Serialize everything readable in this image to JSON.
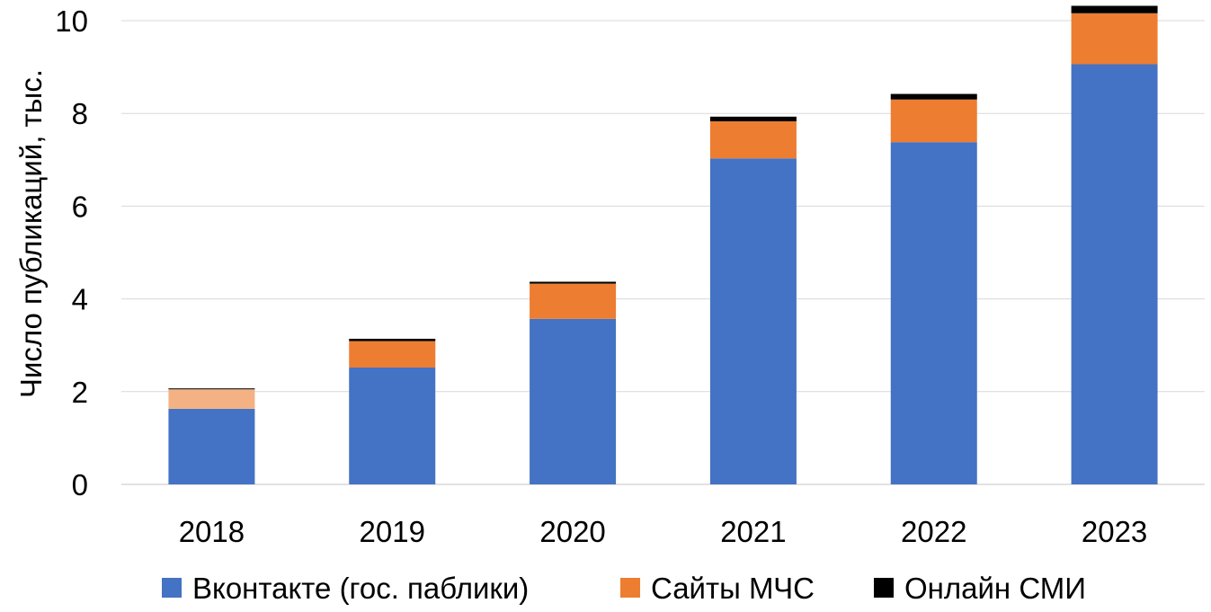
{
  "chart_data": {
    "type": "bar",
    "stacked": true,
    "title": "",
    "xlabel": "",
    "ylabel": "Число публикаций, тыс.",
    "categories": [
      "2018",
      "2019",
      "2020",
      "2021",
      "2022",
      "2023"
    ],
    "ylim": [
      0,
      10
    ],
    "yticks": [
      "0",
      "2",
      "4",
      "6",
      "8",
      "10"
    ],
    "grid": true,
    "legend_position": "bottom",
    "series": [
      {
        "name": "Вконтакте (гос. паблики)",
        "color": "#4472c4",
        "values": [
          1.63,
          2.52,
          3.57,
          7.03,
          7.38,
          9.06
        ]
      },
      {
        "name": "Сайты МЧС",
        "color": "#ed7d31",
        "values": [
          0.42,
          0.57,
          0.76,
          0.8,
          0.92,
          1.1
        ]
      },
      {
        "name": "Онлайн СМИ",
        "color": "#000000",
        "values": [
          0.02,
          0.05,
          0.04,
          0.1,
          0.12,
          0.16
        ]
      }
    ],
    "highlight": {
      "category_index": 0,
      "series_index": 1,
      "color": "#f4b183"
    }
  }
}
